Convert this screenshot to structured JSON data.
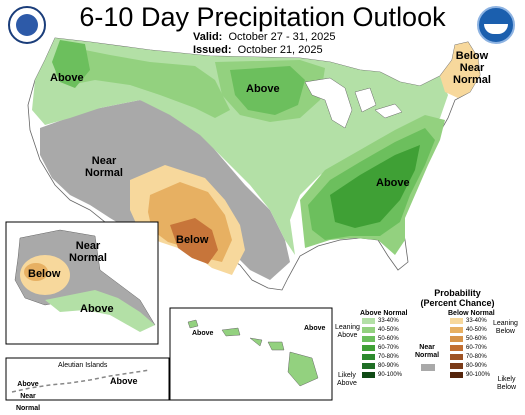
{
  "title": "6-10 Day Precipitation Outlook",
  "valid_label": "Valid:",
  "valid_dates": "October 27 - 31, 2025",
  "issued_label": "Issued:",
  "issued_date": "October 21, 2025",
  "logos": {
    "left": "usda-seal-icon",
    "right": "noaa-logo-icon"
  },
  "map_labels": {
    "above_nw": "Above",
    "above_north": "Above",
    "below_ne": "Below",
    "near_ne": "Near",
    "normal_ne": "Normal",
    "near_west": "Near",
    "normal_west": "Normal",
    "above_se": "Above",
    "below_sw": "Below",
    "ak_near": "Near",
    "ak_normal": "Normal",
    "ak_below": "Below",
    "ak_above": "Above",
    "hi_above_w": "Above",
    "hi_above_e": "Above",
    "aleutian_title": "Aleutian Islands",
    "aleutian_above": "Above",
    "aleutian_above_w": "Above",
    "aleutian_near": "Near",
    "aleutian_normal": "Normal"
  },
  "legend": {
    "title_line1": "Probability",
    "title_line2": "(Percent Chance)",
    "above_header": "Above Normal",
    "below_header": "Below Normal",
    "near_line1": "Near",
    "near_line2": "Normal",
    "leaning_above_1": "Leaning",
    "leaning_above_2": "Above",
    "likely_above_1": "Likely",
    "likely_above_2": "Above",
    "leaning_below_1": "Leaning",
    "leaning_below_2": "Below",
    "likely_below_1": "Likely",
    "likely_below_2": "Below",
    "ranges": [
      "33-40%",
      "40-50%",
      "50-60%",
      "60-70%",
      "70-80%",
      "80-90%",
      "90-100%"
    ],
    "above_colors": [
      "#b3e0a6",
      "#93d17f",
      "#6cbf5d",
      "#3fa035",
      "#2d8a2d",
      "#1f6e25",
      "#0f4a15"
    ],
    "below_colors": [
      "#f7d89c",
      "#e7b062",
      "#d7944a",
      "#c26f32",
      "#9e5324",
      "#7a3a17",
      "#55250c"
    ],
    "near_color": "#a9a9a9"
  },
  "colors": {
    "above_33": "#b3e0a6",
    "above_40": "#93d17f",
    "above_50": "#6cbf5d",
    "above_60": "#3fa035",
    "below_33": "#f7d89c",
    "below_40": "#e7b062",
    "below_50": "#c7753a",
    "near_normal": "#a9a9a9"
  }
}
